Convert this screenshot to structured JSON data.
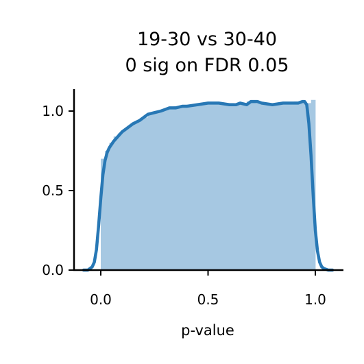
{
  "chart_data": {
    "type": "bar",
    "title_lines": [
      "19-30 vs 30-40",
      "0 sig on FDR 0.05"
    ],
    "xlabel": "p-value",
    "ylabel": "",
    "xlim": [
      -0.12,
      1.13
    ],
    "ylim": [
      0.0,
      1.13
    ],
    "x_ticks": [
      0.0,
      0.5,
      1.0
    ],
    "x_tick_labels": [
      "0.0",
      "0.5",
      "1.0"
    ],
    "y_ticks": [
      0.0,
      0.5,
      1.0
    ],
    "y_tick_labels": [
      "0.0",
      "0.5",
      "1.0"
    ],
    "grid": false,
    "histogram": {
      "bin_width": 0.02,
      "bin_starts": [
        0.0,
        0.02,
        0.04,
        0.06,
        0.08,
        0.1,
        0.12,
        0.14,
        0.16,
        0.18,
        0.2,
        0.22,
        0.24,
        0.26,
        0.28,
        0.3,
        0.32,
        0.34,
        0.36,
        0.38,
        0.4,
        0.42,
        0.44,
        0.46,
        0.48,
        0.5,
        0.52,
        0.54,
        0.56,
        0.58,
        0.6,
        0.62,
        0.64,
        0.66,
        0.68,
        0.7,
        0.72,
        0.74,
        0.76,
        0.78,
        0.8,
        0.82,
        0.84,
        0.86,
        0.88,
        0.9,
        0.92,
        0.94,
        0.96,
        0.98
      ],
      "values": [
        0.7,
        0.75,
        0.8,
        0.84,
        0.86,
        0.88,
        0.9,
        0.92,
        0.93,
        0.95,
        0.96,
        0.98,
        0.99,
        1.0,
        1.01,
        1.02,
        1.02,
        1.03,
        1.03,
        1.03,
        1.04,
        1.04,
        1.04,
        1.05,
        1.05,
        1.05,
        1.05,
        1.05,
        1.04,
        1.05,
        1.05,
        1.04,
        1.05,
        1.05,
        1.06,
        1.06,
        1.05,
        1.05,
        1.05,
        1.04,
        1.04,
        1.05,
        1.05,
        1.05,
        1.05,
        1.06,
        1.06,
        1.05,
        1.05,
        1.07
      ],
      "color": "#a6c8e2"
    },
    "kde": {
      "x": [
        -0.08,
        -0.06,
        -0.04,
        -0.03,
        -0.02,
        -0.01,
        0.0,
        0.01,
        0.02,
        0.03,
        0.04,
        0.05,
        0.06,
        0.08,
        0.1,
        0.12,
        0.15,
        0.18,
        0.2,
        0.22,
        0.25,
        0.28,
        0.3,
        0.32,
        0.35,
        0.38,
        0.4,
        0.45,
        0.5,
        0.55,
        0.6,
        0.63,
        0.65,
        0.68,
        0.7,
        0.73,
        0.75,
        0.8,
        0.85,
        0.88,
        0.9,
        0.92,
        0.94,
        0.95,
        0.96,
        0.97,
        0.98,
        0.99,
        1.0,
        1.01,
        1.02,
        1.03,
        1.04,
        1.06,
        1.08
      ],
      "y": [
        0.0,
        0.0,
        0.02,
        0.05,
        0.13,
        0.28,
        0.45,
        0.6,
        0.69,
        0.74,
        0.77,
        0.79,
        0.81,
        0.84,
        0.87,
        0.89,
        0.92,
        0.94,
        0.96,
        0.98,
        0.99,
        1.0,
        1.01,
        1.02,
        1.02,
        1.03,
        1.03,
        1.04,
        1.05,
        1.05,
        1.04,
        1.04,
        1.05,
        1.04,
        1.06,
        1.06,
        1.05,
        1.04,
        1.05,
        1.05,
        1.05,
        1.05,
        1.06,
        1.06,
        1.04,
        0.92,
        0.72,
        0.47,
        0.25,
        0.12,
        0.05,
        0.02,
        0.01,
        0.0,
        0.0
      ],
      "color": "#2878b5"
    },
    "axis_color": "#000000"
  }
}
